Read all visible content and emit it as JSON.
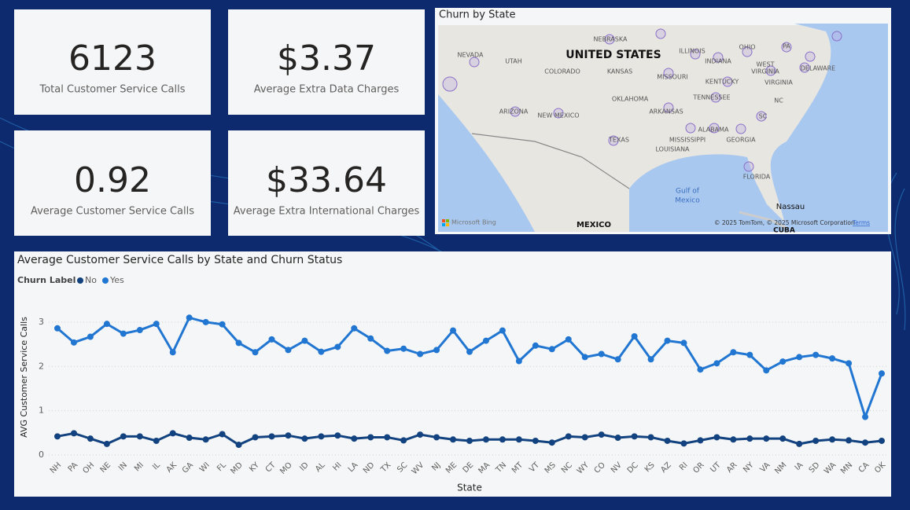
{
  "cards": [
    {
      "value": "6123",
      "label": "Total Customer Service Calls"
    },
    {
      "value": "$3.37",
      "label": "Average Extra Data Charges"
    },
    {
      "value": "0.92",
      "label": "Average Customer Service Calls"
    },
    {
      "value": "$33.64",
      "label": "Average Extra International Charges"
    }
  ],
  "map": {
    "title": "Churn by State",
    "labels": [
      "NEBRASKA",
      "NEVADA",
      "UTAH",
      "UNITED STATES",
      "ILLINOIS",
      "INDIANA",
      "OHIO",
      "PA",
      "COLORADO",
      "KANSAS",
      "MISSOURI",
      "WEST",
      "VIRGINIA",
      "KENTUCKY",
      "VIRGINIA",
      "DELAWARE",
      "OKLAHOMA",
      "TENNESSEE",
      "NC",
      "ARIZONA",
      "NEW MEXICO",
      "ARKANSAS",
      "SC",
      "MISSISSIPPI",
      "ALABAMA",
      "GEORGIA",
      "TEXAS",
      "LOUISIANA",
      "FLORIDA",
      "Gulf of",
      "Mexico",
      "Nassau",
      "MEXICO",
      "CUBA"
    ],
    "attribution": "© 2025 TomTom, © 2025 Microsoft Corporation",
    "terms": "Terms",
    "provider": "Microsoft Bing"
  },
  "chart_data": {
    "type": "line",
    "title": "Average Customer Service Calls by State and Churn Status",
    "legend_title": "Churn Label",
    "x_label": "State",
    "y_label": "AVG Customer Service Calls",
    "categories": [
      "NH",
      "PA",
      "OH",
      "NE",
      "IN",
      "MI",
      "IL",
      "AK",
      "GA",
      "WI",
      "FL",
      "MD",
      "KY",
      "CT",
      "MO",
      "ID",
      "AL",
      "HI",
      "LA",
      "ND",
      "TX",
      "SC",
      "WV",
      "NJ",
      "ME",
      "DE",
      "MA",
      "TN",
      "MT",
      "VT",
      "MS",
      "NC",
      "WY",
      "CO",
      "NV",
      "DC",
      "KS",
      "AZ",
      "RI",
      "OR",
      "UT",
      "AR",
      "NY",
      "VA",
      "NM",
      "IA",
      "SD",
      "WA",
      "MN",
      "CA",
      "OK"
    ],
    "series": [
      {
        "name": "No",
        "color": "#12427f",
        "values": [
          0.42,
          0.49,
          0.37,
          0.25,
          0.42,
          0.42,
          0.32,
          0.49,
          0.39,
          0.35,
          0.47,
          0.23,
          0.4,
          0.42,
          0.44,
          0.37,
          0.42,
          0.44,
          0.37,
          0.4,
          0.4,
          0.33,
          0.46,
          0.4,
          0.35,
          0.32,
          0.35,
          0.35,
          0.35,
          0.32,
          0.28,
          0.42,
          0.4,
          0.46,
          0.39,
          0.42,
          0.4,
          0.32,
          0.26,
          0.33,
          0.4,
          0.35,
          0.37,
          0.37,
          0.37,
          0.25,
          0.32,
          0.35,
          0.33,
          0.28,
          0.32
        ]
      },
      {
        "name": "Yes",
        "color": "#2176d2",
        "values": [
          2.86,
          2.54,
          2.67,
          2.96,
          2.74,
          2.82,
          2.96,
          2.32,
          3.1,
          3.0,
          2.95,
          2.53,
          2.32,
          2.61,
          2.37,
          2.58,
          2.33,
          2.44,
          2.86,
          2.63,
          2.35,
          2.4,
          2.28,
          2.37,
          2.81,
          2.33,
          2.58,
          2.81,
          2.12,
          2.47,
          2.39,
          2.61,
          2.21,
          2.28,
          2.16,
          2.68,
          2.16,
          2.58,
          2.53,
          1.93,
          2.07,
          2.32,
          2.26,
          1.91,
          2.11,
          2.21,
          2.26,
          2.18,
          2.07,
          0.86,
          1.84
        ]
      }
    ],
    "ylim": [
      0,
      3.3
    ],
    "yticks": [
      0,
      1,
      2,
      3
    ],
    "grid": true
  }
}
